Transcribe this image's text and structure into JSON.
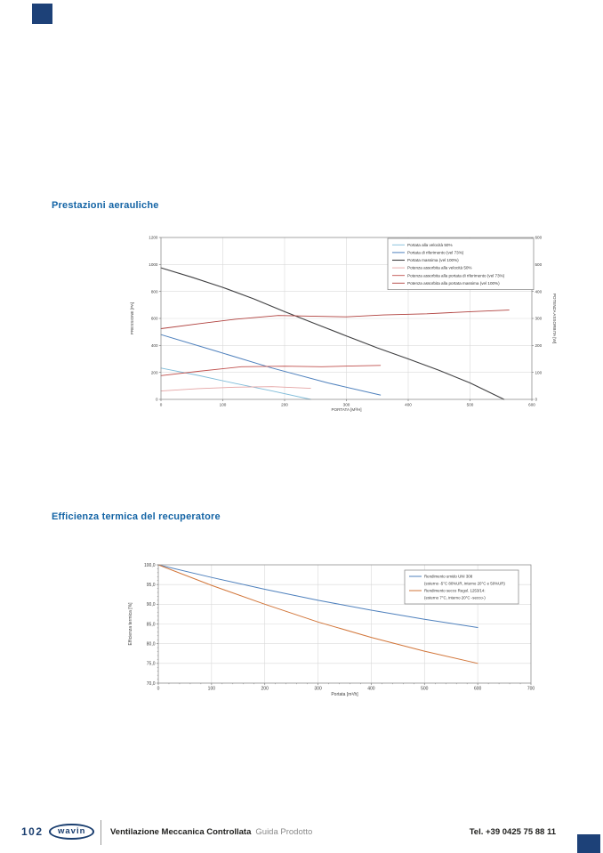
{
  "page": {
    "number": "102",
    "brand": "wavin",
    "footer_title": "Ventilazione Meccanica Controllata",
    "footer_subtitle": "Guida Prodotto",
    "footer_phone": "Tel. +39 0425 75 88 11",
    "accent_navy": "#1d4178",
    "accent_blue": "#1464a5"
  },
  "sections": [
    {
      "title": "Prestazioni aerauliche"
    },
    {
      "title": "Efficienza termica del recuperatore"
    }
  ],
  "chart_data": [
    {
      "type": "line",
      "title": "",
      "xlabel": "PORTATA [M³/H]",
      "ylabel_left": "PRESSIONE [PA]",
      "ylabel_right": "POTENZA ASSORBITA [W]",
      "xlim": [
        0,
        600
      ],
      "xticks": [
        0,
        100,
        200,
        300,
        400,
        500,
        600
      ],
      "ylim_left": [
        0,
        1200
      ],
      "yticks_left": [
        0,
        200,
        400,
        600,
        800,
        1000,
        1200
      ],
      "ylim_right": [
        0,
        600
      ],
      "yticks_right": [
        0,
        100,
        200,
        300,
        400,
        500,
        600
      ],
      "grid": true,
      "legend_position": "top-right",
      "series": [
        {
          "name": "Portata alla velocità 50%",
          "axis": "left",
          "color": "#7fbcd9",
          "width": 0.9,
          "points": [
            [
              0,
              232
            ],
            [
              60,
              178
            ],
            [
              120,
              118
            ],
            [
              180,
              62
            ],
            [
              242,
              0
            ]
          ]
        },
        {
          "name": "Portata di riferimento (vel 73%)",
          "axis": "left",
          "color": "#4f81bd",
          "width": 1,
          "points": [
            [
              0,
              480
            ],
            [
              90,
              357
            ],
            [
              180,
              232
            ],
            [
              270,
              122
            ],
            [
              355,
              32
            ]
          ]
        },
        {
          "name": "Portata massima (vel 100%)",
          "axis": "left",
          "color": "#3f3f41",
          "width": 1.1,
          "points": [
            [
              0,
              975
            ],
            [
              50,
              905
            ],
            [
              100,
              830
            ],
            [
              150,
              745
            ],
            [
              200,
              650
            ],
            [
              250,
              560
            ],
            [
              300,
              470
            ],
            [
              350,
              382
            ],
            [
              400,
              300
            ],
            [
              450,
              215
            ],
            [
              500,
              122
            ],
            [
              555,
              0
            ]
          ]
        },
        {
          "name": "Potenza assorbita alla velocità 50%",
          "axis": "right",
          "color": "#e4a3a3",
          "width": 0.9,
          "points": [
            [
              0,
              31
            ],
            [
              60,
              40
            ],
            [
              120,
              45
            ],
            [
              180,
              47
            ],
            [
              242,
              41
            ]
          ]
        },
        {
          "name": "Potenza assorbita alla portata di riferimento (vel 73%)",
          "axis": "right",
          "color": "#c0504d",
          "width": 0.9,
          "points": [
            [
              0,
              88
            ],
            [
              60,
              104
            ],
            [
              130,
              121
            ],
            [
              200,
              123
            ],
            [
              260,
              121
            ],
            [
              310,
              124
            ],
            [
              355,
              126
            ]
          ]
        },
        {
          "name": "Potenza assorbita alla portata massima (vel 100%)",
          "axis": "right",
          "color": "#b0413e",
          "width": 0.9,
          "points": [
            [
              0,
              262
            ],
            [
              60,
              280
            ],
            [
              120,
              297
            ],
            [
              190,
              311
            ],
            [
              250,
              308
            ],
            [
              300,
              306
            ],
            [
              360,
              313
            ],
            [
              430,
              317
            ],
            [
              500,
              325
            ],
            [
              563,
              331
            ]
          ]
        }
      ]
    },
    {
      "type": "line",
      "title": "",
      "xlabel": "Portata [m³/h]",
      "ylabel_left": "Efficienza termica [%]",
      "xlim": [
        0,
        700
      ],
      "xticks": [
        0,
        100,
        200,
        300,
        400,
        500,
        600,
        700
      ],
      "ylim_left": [
        70,
        100
      ],
      "yticks_left": [
        70,
        75,
        80,
        85,
        90,
        95,
        100
      ],
      "ytick_labels_left": [
        "70,0",
        "75,0",
        "80,0",
        "85,0",
        "90,0",
        "95,0",
        "100,0"
      ],
      "grid": true,
      "legend_position": "top-right",
      "series": [
        {
          "name": "Rendimento umido UNI 308",
          "name2": "(esterno -5°C 80%UR, interno 20°C e 50%UR)",
          "axis": "left",
          "color": "#4f81bd",
          "width": 1,
          "points": [
            [
              0,
              100
            ],
            [
              100,
              96.8
            ],
            [
              200,
              93.8
            ],
            [
              300,
              91.0
            ],
            [
              400,
              88.5
            ],
            [
              500,
              86.2
            ],
            [
              600,
              84.1
            ]
          ]
        },
        {
          "name": "Rendimento secco Regol. 1253/14:",
          "name2": "(esterno 7°C, interno 20°C -secco-)",
          "axis": "left",
          "color": "#d2763a",
          "width": 1,
          "points": [
            [
              0,
              100
            ],
            [
              100,
              94.8
            ],
            [
              200,
              90.0
            ],
            [
              300,
              85.5
            ],
            [
              400,
              81.6
            ],
            [
              500,
              78.1
            ],
            [
              600,
              75.0
            ]
          ]
        }
      ]
    }
  ]
}
